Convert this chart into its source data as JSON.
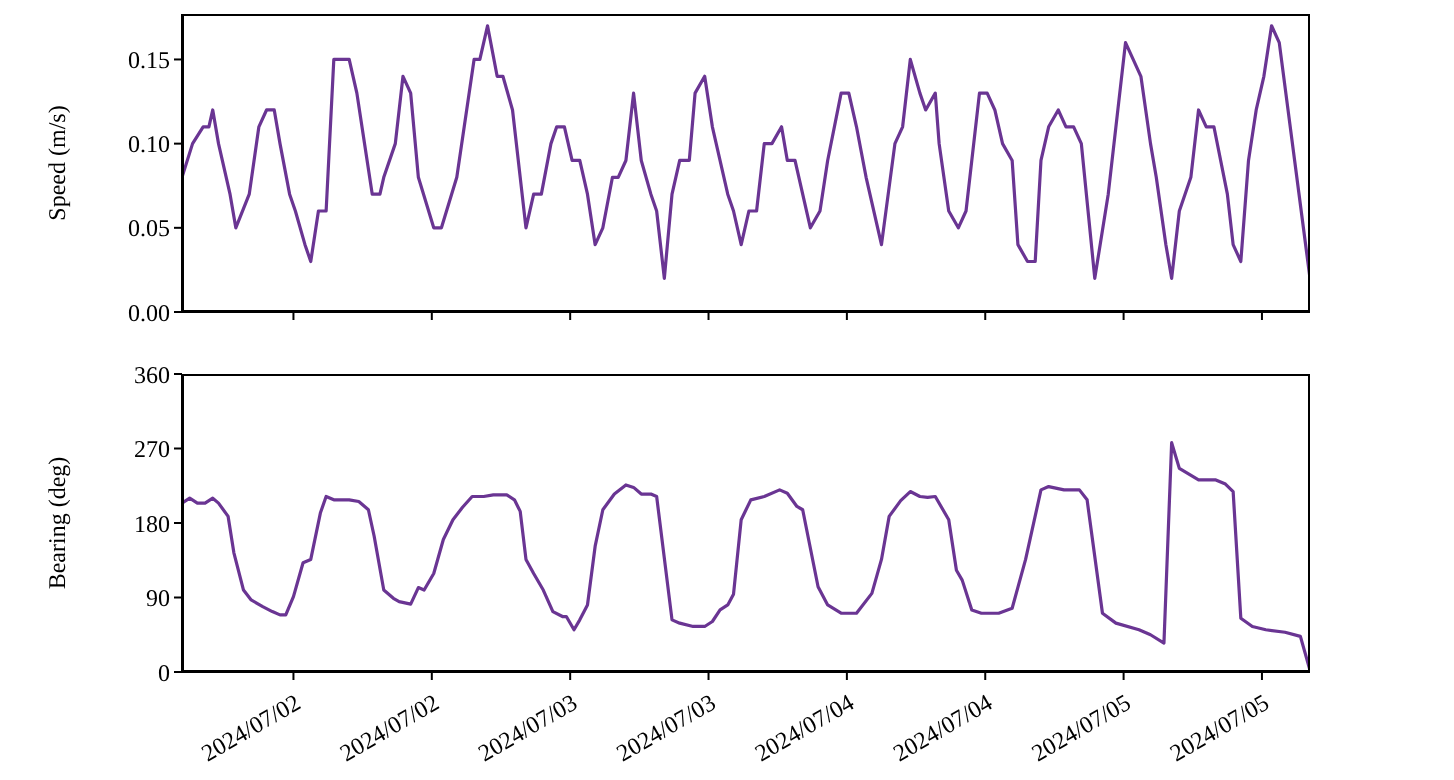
{
  "chart_data": [
    {
      "type": "line",
      "ylabel": "Speed (m/s)",
      "xlim": [
        "2024-07-01T14:20",
        "2024-07-05T16:10"
      ],
      "xticks": [
        {
          "value": "2024-07-02T00:00",
          "label": null
        },
        {
          "value": "2024-07-02T12:00",
          "label": null
        },
        {
          "value": "2024-07-03T00:00",
          "label": null
        },
        {
          "value": "2024-07-03T12:00",
          "label": null
        },
        {
          "value": "2024-07-04T00:00",
          "label": null
        },
        {
          "value": "2024-07-04T12:00",
          "label": null
        },
        {
          "value": "2024-07-05T00:00",
          "label": null
        },
        {
          "value": "2024-07-05T12:00",
          "label": null
        }
      ],
      "ylim": [
        0,
        0.177
      ],
      "yticks": [
        {
          "value": 0,
          "label": "0.00"
        },
        {
          "value": 0.05,
          "label": "0.05"
        },
        {
          "value": 0.1,
          "label": "0.10"
        },
        {
          "value": 0.15,
          "label": "0.15"
        }
      ],
      "tick_labels": "y",
      "grid": false,
      "legend": false,
      "marker": "none",
      "line_style": "solid",
      "x": [
        "2024-07-01T14:20",
        "2024-07-01T15:15",
        "2024-07-01T16:10",
        "2024-07-01T16:40",
        "2024-07-01T17:00",
        "2024-07-01T17:30",
        "2024-07-01T18:30",
        "2024-07-01T19:00",
        "2024-07-01T20:10",
        "2024-07-01T21:00",
        "2024-07-01T21:40",
        "2024-07-01T22:20",
        "2024-07-01T22:50",
        "2024-07-01T23:40",
        "2024-07-02T00:10",
        "2024-07-02T01:00",
        "2024-07-02T01:30",
        "2024-07-02T02:10",
        "2024-07-02T02:50",
        "2024-07-02T03:30",
        "2024-07-02T04:50",
        "2024-07-02T05:30",
        "2024-07-02T06:10",
        "2024-07-02T06:50",
        "2024-07-02T07:30",
        "2024-07-02T07:50",
        "2024-07-02T08:50",
        "2024-07-02T09:30",
        "2024-07-02T10:10",
        "2024-07-02T10:50",
        "2024-07-02T12:10",
        "2024-07-02T12:50",
        "2024-07-02T14:10",
        "2024-07-02T15:40",
        "2024-07-02T16:10",
        "2024-07-02T16:50",
        "2024-07-02T17:40",
        "2024-07-02T18:10",
        "2024-07-02T19:00",
        "2024-07-02T19:40",
        "2024-07-02T20:10",
        "2024-07-02T20:50",
        "2024-07-02T21:30",
        "2024-07-02T22:20",
        "2024-07-02T22:50",
        "2024-07-02T23:30",
        "2024-07-03T00:10",
        "2024-07-03T00:50",
        "2024-07-03T01:30",
        "2024-07-03T02:10",
        "2024-07-03T02:50",
        "2024-07-03T03:40",
        "2024-07-03T04:10",
        "2024-07-03T04:50",
        "2024-07-03T05:30",
        "2024-07-03T06:10",
        "2024-07-03T07:00",
        "2024-07-03T07:30",
        "2024-07-03T08:10",
        "2024-07-03T08:50",
        "2024-07-03T09:30",
        "2024-07-03T10:20",
        "2024-07-03T10:50",
        "2024-07-03T11:40",
        "2024-07-03T12:20",
        "2024-07-03T13:40",
        "2024-07-03T14:10",
        "2024-07-03T14:50",
        "2024-07-03T15:30",
        "2024-07-03T16:10",
        "2024-07-03T16:50",
        "2024-07-03T17:30",
        "2024-07-03T18:20",
        "2024-07-03T18:50",
        "2024-07-03T19:30",
        "2024-07-03T20:50",
        "2024-07-03T21:40",
        "2024-07-03T22:20",
        "2024-07-03T23:30",
        "2024-07-04T00:10",
        "2024-07-04T00:50",
        "2024-07-04T01:40",
        "2024-07-04T03:00",
        "2024-07-04T04:10",
        "2024-07-04T04:50",
        "2024-07-04T05:30",
        "2024-07-04T06:20",
        "2024-07-04T06:50",
        "2024-07-04T07:40",
        "2024-07-04T08:00",
        "2024-07-04T08:50",
        "2024-07-04T09:40",
        "2024-07-04T10:20",
        "2024-07-04T11:30",
        "2024-07-04T12:10",
        "2024-07-04T12:50",
        "2024-07-04T13:30",
        "2024-07-04T14:20",
        "2024-07-04T14:50",
        "2024-07-04T15:40",
        "2024-07-04T16:20",
        "2024-07-04T16:50",
        "2024-07-04T17:30",
        "2024-07-04T18:20",
        "2024-07-04T19:00",
        "2024-07-04T19:40",
        "2024-07-04T20:20",
        "2024-07-04T21:30",
        "2024-07-04T22:40",
        "2024-07-05T00:10",
        "2024-07-05T01:30",
        "2024-07-05T02:20",
        "2024-07-05T02:50",
        "2024-07-05T03:40",
        "2024-07-05T04:10",
        "2024-07-05T04:50",
        "2024-07-05T05:50",
        "2024-07-05T06:30",
        "2024-07-05T07:10",
        "2024-07-05T07:50",
        "2024-07-05T09:00",
        "2024-07-05T09:30",
        "2024-07-05T10:10",
        "2024-07-05T10:50",
        "2024-07-05T11:30",
        "2024-07-05T12:10",
        "2024-07-05T12:50",
        "2024-07-05T13:30",
        "2024-07-05T14:50",
        "2024-07-05T16:10"
      ],
      "series": [
        {
          "color": "#6a3593",
          "values": [
            0.08,
            0.1,
            0.11,
            0.11,
            0.12,
            0.1,
            0.07,
            0.05,
            0.07,
            0.11,
            0.12,
            0.12,
            0.1,
            0.07,
            0.06,
            0.04,
            0.03,
            0.06,
            0.06,
            0.15,
            0.15,
            0.13,
            0.1,
            0.07,
            0.07,
            0.08,
            0.1,
            0.14,
            0.13,
            0.08,
            0.05,
            0.05,
            0.08,
            0.15,
            0.15,
            0.17,
            0.14,
            0.14,
            0.12,
            0.08,
            0.05,
            0.07,
            0.07,
            0.1,
            0.11,
            0.11,
            0.09,
            0.09,
            0.07,
            0.04,
            0.05,
            0.08,
            0.08,
            0.09,
            0.13,
            0.09,
            0.07,
            0.06,
            0.02,
            0.07,
            0.09,
            0.09,
            0.13,
            0.14,
            0.11,
            0.07,
            0.06,
            0.04,
            0.06,
            0.06,
            0.1,
            0.1,
            0.11,
            0.09,
            0.09,
            0.05,
            0.06,
            0.09,
            0.13,
            0.13,
            0.11,
            0.08,
            0.04,
            0.1,
            0.11,
            0.15,
            0.13,
            0.12,
            0.13,
            0.1,
            0.06,
            0.05,
            0.06,
            0.13,
            0.13,
            0.12,
            0.1,
            0.09,
            0.04,
            0.03,
            0.03,
            0.09,
            0.11,
            0.12,
            0.11,
            0.11,
            0.1,
            0.02,
            0.07,
            0.16,
            0.14,
            0.1,
            0.08,
            0.04,
            0.02,
            0.06,
            0.08,
            0.12,
            0.11,
            0.11,
            0.07,
            0.04,
            0.03,
            0.09,
            0.12,
            0.14,
            0.17,
            0.16,
            0.09,
            0.02
          ]
        }
      ]
    },
    {
      "type": "line",
      "ylabel": "Bearing (deg)",
      "xlim": [
        "2024-07-01T14:20",
        "2024-07-05T16:10"
      ],
      "xticks": [
        {
          "value": "2024-07-02T00:00",
          "label": "2024/07/02"
        },
        {
          "value": "2024-07-02T12:00",
          "label": "2024/07/02"
        },
        {
          "value": "2024-07-03T00:00",
          "label": "2024/07/03"
        },
        {
          "value": "2024-07-03T12:00",
          "label": "2024/07/03"
        },
        {
          "value": "2024-07-04T00:00",
          "label": "2024/07/04"
        },
        {
          "value": "2024-07-04T12:00",
          "label": "2024/07/04"
        },
        {
          "value": "2024-07-05T00:00",
          "label": "2024/07/05"
        },
        {
          "value": "2024-07-05T12:00",
          "label": "2024/07/05"
        }
      ],
      "ylim": [
        0,
        360
      ],
      "yticks": [
        0,
        90,
        180,
        270,
        360
      ],
      "grid": false,
      "legend": false,
      "marker": "none",
      "line_style": "solid",
      "x": [
        "2024-07-01T14:20",
        "2024-07-01T15:00",
        "2024-07-01T15:40",
        "2024-07-01T16:20",
        "2024-07-01T17:00",
        "2024-07-01T17:30",
        "2024-07-01T18:20",
        "2024-07-01T18:50",
        "2024-07-01T19:40",
        "2024-07-01T20:20",
        "2024-07-01T21:20",
        "2024-07-01T22:10",
        "2024-07-01T22:50",
        "2024-07-01T23:20",
        "2024-07-02T00:00",
        "2024-07-02T00:50",
        "2024-07-02T01:30",
        "2024-07-02T02:20",
        "2024-07-02T02:50",
        "2024-07-02T03:30",
        "2024-07-02T04:50",
        "2024-07-02T05:40",
        "2024-07-02T06:30",
        "2024-07-02T07:00",
        "2024-07-02T07:50",
        "2024-07-02T08:40",
        "2024-07-02T09:10",
        "2024-07-02T10:10",
        "2024-07-02T10:50",
        "2024-07-02T11:20",
        "2024-07-02T12:10",
        "2024-07-02T13:00",
        "2024-07-02T13:50",
        "2024-07-02T14:40",
        "2024-07-02T15:30",
        "2024-07-02T16:30",
        "2024-07-02T17:20",
        "2024-07-02T18:30",
        "2024-07-02T19:10",
        "2024-07-02T19:40",
        "2024-07-02T20:10",
        "2024-07-02T20:50",
        "2024-07-02T21:40",
        "2024-07-02T22:30",
        "2024-07-02T23:20",
        "2024-07-02T23:40",
        "2024-07-03T00:20",
        "2024-07-03T00:50",
        "2024-07-03T01:30",
        "2024-07-03T02:10",
        "2024-07-03T02:50",
        "2024-07-03T03:50",
        "2024-07-03T04:50",
        "2024-07-03T05:30",
        "2024-07-03T06:10",
        "2024-07-03T07:00",
        "2024-07-03T07:30",
        "2024-07-03T08:50",
        "2024-07-03T09:30",
        "2024-07-03T10:40",
        "2024-07-03T11:40",
        "2024-07-03T12:20",
        "2024-07-03T13:00",
        "2024-07-03T13:40",
        "2024-07-03T14:10",
        "2024-07-03T14:50",
        "2024-07-03T15:40",
        "2024-07-03T16:50",
        "2024-07-03T18:10",
        "2024-07-03T18:50",
        "2024-07-03T19:40",
        "2024-07-03T20:10",
        "2024-07-03T21:30",
        "2024-07-03T22:20",
        "2024-07-03T23:30",
        "2024-07-04T00:50",
        "2024-07-04T02:10",
        "2024-07-04T03:00",
        "2024-07-04T03:40",
        "2024-07-04T04:40",
        "2024-07-04T05:30",
        "2024-07-04T06:20",
        "2024-07-04T07:00",
        "2024-07-04T07:40",
        "2024-07-04T08:50",
        "2024-07-04T09:30",
        "2024-07-04T10:00",
        "2024-07-04T10:50",
        "2024-07-04T11:40",
        "2024-07-04T13:10",
        "2024-07-04T14:20",
        "2024-07-04T15:30",
        "2024-07-04T16:50",
        "2024-07-04T17:30",
        "2024-07-04T18:50",
        "2024-07-04T20:10",
        "2024-07-04T20:50",
        "2024-07-04T22:10",
        "2024-07-04T23:20",
        "2024-07-05T01:20",
        "2024-07-05T02:20",
        "2024-07-05T03:30",
        "2024-07-05T04:10",
        "2024-07-05T04:50",
        "2024-07-05T06:30",
        "2024-07-05T08:00",
        "2024-07-05T08:50",
        "2024-07-05T09:30",
        "2024-07-05T10:10",
        "2024-07-05T11:10",
        "2024-07-05T12:20",
        "2024-07-05T14:00",
        "2024-07-05T15:20",
        "2024-07-05T16:10"
      ],
      "series": [
        {
          "color": "#6a3593",
          "values": [
            204,
            210,
            204,
            204,
            210,
            204,
            188,
            144,
            99,
            87,
            79,
            73,
            69,
            69,
            91,
            132,
            136,
            192,
            212,
            208,
            208,
            206,
            196,
            164,
            99,
            89,
            85,
            82,
            102,
            99,
            119,
            160,
            184,
            199,
            212,
            212,
            214,
            214,
            208,
            194,
            136,
            119,
            99,
            73,
            67,
            67,
            51,
            63,
            81,
            152,
            196,
            215,
            226,
            223,
            215,
            215,
            212,
            63,
            59,
            55,
            55,
            61,
            75,
            81,
            94,
            184,
            208,
            212,
            220,
            216,
            200,
            196,
            103,
            81,
            71,
            71,
            95,
            136,
            188,
            207,
            218,
            212,
            211,
            212,
            184,
            123,
            111,
            75,
            71,
            71,
            77,
            136,
            220,
            224,
            220,
            220,
            208,
            71,
            59,
            51,
            45,
            35,
            277,
            246,
            232,
            232,
            227,
            218,
            65,
            55,
            51,
            48,
            43,
            2
          ]
        }
      ]
    }
  ]
}
